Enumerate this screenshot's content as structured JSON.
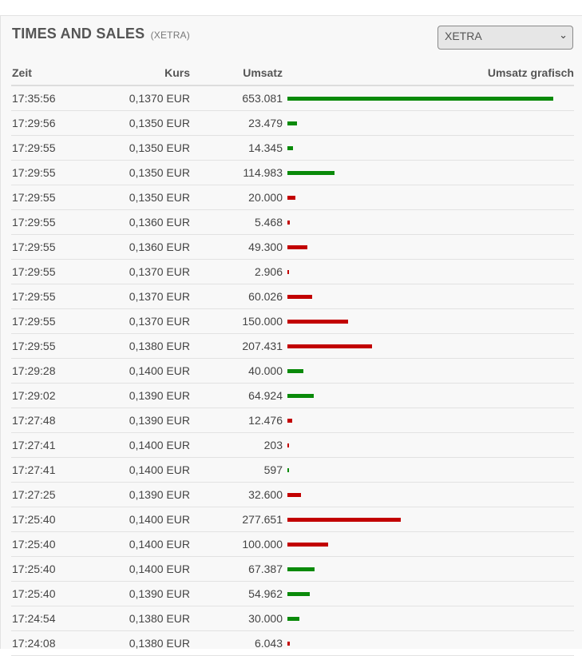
{
  "header": {
    "title": "TIMES AND SALES",
    "subtitle": "(XETRA)",
    "exchange_select": {
      "selected": "XETRA"
    }
  },
  "columns": {
    "time": "Zeit",
    "price": "Kurs",
    "volume": "Umsatz",
    "graph": "Umsatz grafisch"
  },
  "colors": {
    "up": "#0a8a0a",
    "down": "#c20000"
  },
  "trades": [
    {
      "time": "17:35:56",
      "price": "0,1370 EUR",
      "volume": "653.081",
      "volume_value": 653081,
      "direction": "up"
    },
    {
      "time": "17:29:56",
      "price": "0,1350 EUR",
      "volume": "23.479",
      "volume_value": 23479,
      "direction": "up"
    },
    {
      "time": "17:29:55",
      "price": "0,1350 EUR",
      "volume": "14.345",
      "volume_value": 14345,
      "direction": "up"
    },
    {
      "time": "17:29:55",
      "price": "0,1350 EUR",
      "volume": "114.983",
      "volume_value": 114983,
      "direction": "up"
    },
    {
      "time": "17:29:55",
      "price": "0,1350 EUR",
      "volume": "20.000",
      "volume_value": 20000,
      "direction": "down"
    },
    {
      "time": "17:29:55",
      "price": "0,1360 EUR",
      "volume": "5.468",
      "volume_value": 5468,
      "direction": "down"
    },
    {
      "time": "17:29:55",
      "price": "0,1360 EUR",
      "volume": "49.300",
      "volume_value": 49300,
      "direction": "down"
    },
    {
      "time": "17:29:55",
      "price": "0,1370 EUR",
      "volume": "2.906",
      "volume_value": 2906,
      "direction": "down"
    },
    {
      "time": "17:29:55",
      "price": "0,1370 EUR",
      "volume": "60.026",
      "volume_value": 60026,
      "direction": "down"
    },
    {
      "time": "17:29:55",
      "price": "0,1370 EUR",
      "volume": "150.000",
      "volume_value": 150000,
      "direction": "down"
    },
    {
      "time": "17:29:55",
      "price": "0,1380 EUR",
      "volume": "207.431",
      "volume_value": 207431,
      "direction": "down"
    },
    {
      "time": "17:29:28",
      "price": "0,1400 EUR",
      "volume": "40.000",
      "volume_value": 40000,
      "direction": "up"
    },
    {
      "time": "17:29:02",
      "price": "0,1390 EUR",
      "volume": "64.924",
      "volume_value": 64924,
      "direction": "up"
    },
    {
      "time": "17:27:48",
      "price": "0,1390 EUR",
      "volume": "12.476",
      "volume_value": 12476,
      "direction": "down"
    },
    {
      "time": "17:27:41",
      "price": "0,1400 EUR",
      "volume": "203",
      "volume_value": 203,
      "direction": "down"
    },
    {
      "time": "17:27:41",
      "price": "0,1400 EUR",
      "volume": "597",
      "volume_value": 597,
      "direction": "up"
    },
    {
      "time": "17:27:25",
      "price": "0,1390 EUR",
      "volume": "32.600",
      "volume_value": 32600,
      "direction": "down"
    },
    {
      "time": "17:25:40",
      "price": "0,1400 EUR",
      "volume": "277.651",
      "volume_value": 277651,
      "direction": "down"
    },
    {
      "time": "17:25:40",
      "price": "0,1400 EUR",
      "volume": "100.000",
      "volume_value": 100000,
      "direction": "down"
    },
    {
      "time": "17:25:40",
      "price": "0,1400 EUR",
      "volume": "67.387",
      "volume_value": 67387,
      "direction": "up"
    },
    {
      "time": "17:25:40",
      "price": "0,1390 EUR",
      "volume": "54.962",
      "volume_value": 54962,
      "direction": "up"
    },
    {
      "time": "17:24:54",
      "price": "0,1380 EUR",
      "volume": "30.000",
      "volume_value": 30000,
      "direction": "up"
    },
    {
      "time": "17:24:08",
      "price": "0,1380 EUR",
      "volume": "6.043",
      "volume_value": 6043,
      "direction": "down"
    }
  ]
}
